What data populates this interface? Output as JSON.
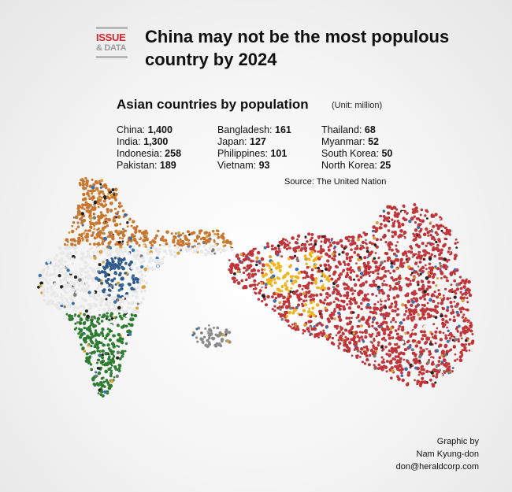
{
  "header": {
    "logo_line1": "ISSUE",
    "logo_line2": "& DATA",
    "headline": "China may not be the most populous country by 2024"
  },
  "chart_data": {
    "type": "table",
    "title": "Asian countries by population",
    "unit": "(Unit: million)",
    "source": "Source: The United Nation",
    "columns": [
      [
        {
          "name": "China:",
          "value": "1,400"
        },
        {
          "name": "India:",
          "value": "1,300"
        },
        {
          "name": "Indonesia:",
          "value": "258"
        },
        {
          "name": "Pakistan:",
          "value": "189"
        }
      ],
      [
        {
          "name": "Bangladesh:",
          "value": "161"
        },
        {
          "name": "Japan:",
          "value": "127"
        },
        {
          "name": "Philippines:",
          "value": "101"
        },
        {
          "name": "Vietnam:",
          "value": "93"
        }
      ],
      [
        {
          "name": "Thailand:",
          "value": "68"
        },
        {
          "name": "Myanmar:",
          "value": "52"
        },
        {
          "name": "South Korea:",
          "value": "50"
        },
        {
          "name": "North Korea:",
          "value": "25"
        }
      ]
    ]
  },
  "illustration": {
    "description_icons": [
      "india-crowd-map-icon",
      "china-crowd-map-icon"
    ],
    "colors": {
      "india_saffron": "#c9762e",
      "india_white": "#e8e8e8",
      "india_chakra": "#2f5a8c",
      "india_green": "#2e7d32",
      "china_red": "#c0353a",
      "china_star": "#f0b41f"
    }
  },
  "credit": {
    "line1": "Graphic by",
    "line2": "Nam Kyung-don",
    "email": "don@heraldcorp.com"
  }
}
